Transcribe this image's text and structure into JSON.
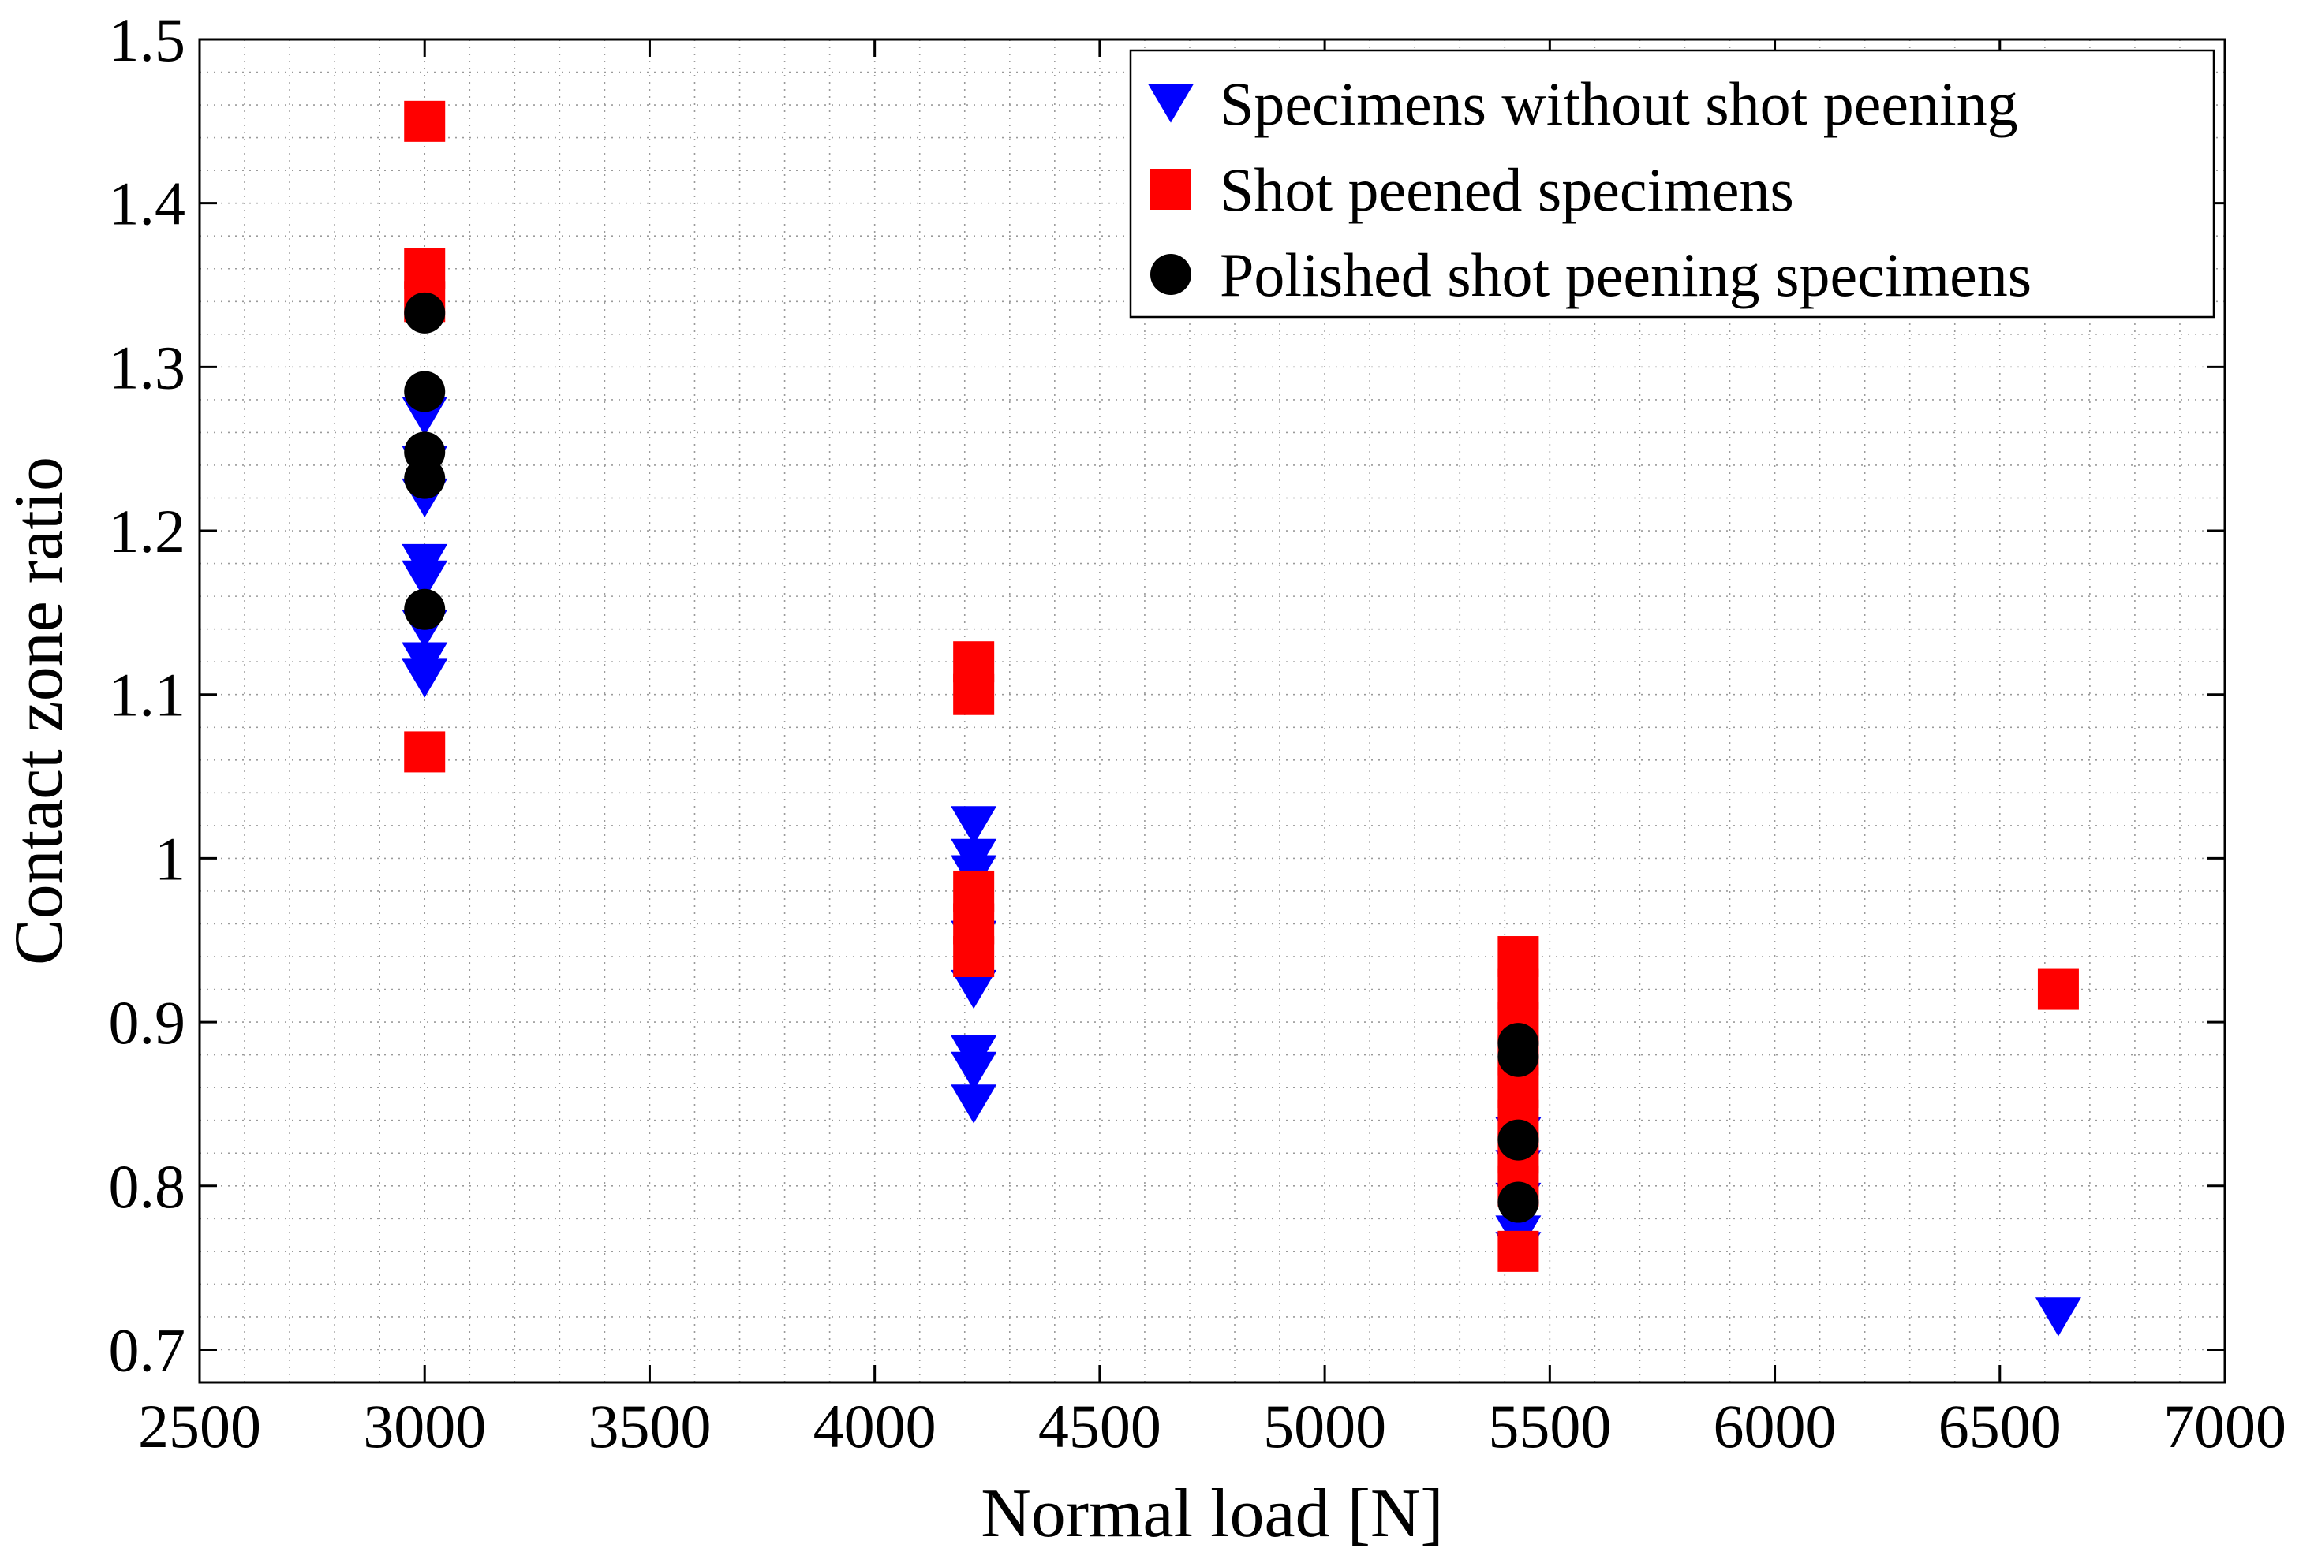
{
  "chart_data": {
    "type": "scatter",
    "title": "",
    "xlabel": "Normal load [N]",
    "ylabel": "Contact zone ratio",
    "xlim": [
      2500,
      7000
    ],
    "ylim": [
      0.68,
      1.5
    ],
    "grid": true,
    "legend_position": "top-right",
    "x_ticks": [
      2500,
      3000,
      3500,
      4000,
      4500,
      5000,
      5500,
      6000,
      6500,
      7000
    ],
    "x_tick_labels": [
      "2500",
      "3000",
      "3500",
      "4000",
      "4500",
      "5000",
      "5500",
      "6000",
      "6500",
      "7000"
    ],
    "y_ticks": [
      0.7,
      0.8,
      0.9,
      1.0,
      1.1,
      1.2,
      1.3,
      1.4,
      1.5
    ],
    "y_tick_labels": [
      "0.7",
      "0.8",
      "0.9",
      "1",
      "1.1",
      "1.2",
      "1.3",
      "1.4",
      "1.5"
    ],
    "series": [
      {
        "name": "Specimens without shot peening",
        "marker": "triangle-down",
        "color": "#0000ff",
        "points": [
          {
            "x": 3000,
            "y": 1.27
          },
          {
            "x": 3000,
            "y": 1.24
          },
          {
            "x": 3000,
            "y": 1.22
          },
          {
            "x": 3000,
            "y": 1.18
          },
          {
            "x": 3000,
            "y": 1.17
          },
          {
            "x": 3000,
            "y": 1.14
          },
          {
            "x": 3000,
            "y": 1.12
          },
          {
            "x": 3000,
            "y": 1.11
          },
          {
            "x": 4220,
            "y": 1.02
          },
          {
            "x": 4220,
            "y": 1.0
          },
          {
            "x": 4220,
            "y": 0.99
          },
          {
            "x": 4220,
            "y": 0.95
          },
          {
            "x": 4220,
            "y": 0.92
          },
          {
            "x": 4220,
            "y": 0.88
          },
          {
            "x": 4220,
            "y": 0.87
          },
          {
            "x": 4220,
            "y": 0.85
          },
          {
            "x": 5430,
            "y": 0.83
          },
          {
            "x": 5430,
            "y": 0.81
          },
          {
            "x": 5430,
            "y": 0.79
          },
          {
            "x": 5430,
            "y": 0.77
          },
          {
            "x": 5430,
            "y": 0.76
          },
          {
            "x": 6630,
            "y": 0.72
          }
        ]
      },
      {
        "name": "Shot peened specimens",
        "marker": "square",
        "color": "#ff0000",
        "points": [
          {
            "x": 3000,
            "y": 1.45
          },
          {
            "x": 3000,
            "y": 1.36
          },
          {
            "x": 3000,
            "y": 1.34
          },
          {
            "x": 3000,
            "y": 1.065
          },
          {
            "x": 4220,
            "y": 1.12
          },
          {
            "x": 4220,
            "y": 1.1
          },
          {
            "x": 4220,
            "y": 0.98
          },
          {
            "x": 4220,
            "y": 0.96
          },
          {
            "x": 4220,
            "y": 0.94
          },
          {
            "x": 5430,
            "y": 0.94
          },
          {
            "x": 5430,
            "y": 0.92
          },
          {
            "x": 5430,
            "y": 0.9
          },
          {
            "x": 5430,
            "y": 0.88
          },
          {
            "x": 5430,
            "y": 0.86
          },
          {
            "x": 5430,
            "y": 0.84
          },
          {
            "x": 5430,
            "y": 0.82
          },
          {
            "x": 5430,
            "y": 0.8
          },
          {
            "x": 5430,
            "y": 0.76
          },
          {
            "x": 6630,
            "y": 0.92
          }
        ]
      },
      {
        "name": "Polished shot peening specimens",
        "marker": "circle",
        "color": "#000000",
        "points": [
          {
            "x": 3000,
            "y": 1.333
          },
          {
            "x": 3000,
            "y": 1.285
          },
          {
            "x": 3000,
            "y": 1.248
          },
          {
            "x": 3000,
            "y": 1.232
          },
          {
            "x": 3000,
            "y": 1.152
          },
          {
            "x": 5430,
            "y": 0.887
          },
          {
            "x": 5430,
            "y": 0.879
          },
          {
            "x": 5430,
            "y": 0.828
          },
          {
            "x": 5430,
            "y": 0.79
          }
        ]
      }
    ]
  }
}
